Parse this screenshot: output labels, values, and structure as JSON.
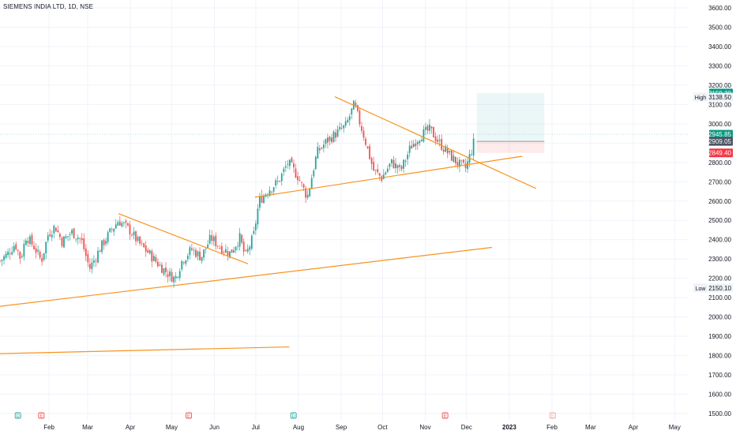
{
  "symbol_title": "SIEMENS INDIA LTD, 1D, NSE",
  "colors": {
    "up": "#26a69a",
    "down": "#ef5350",
    "trendline": "#f7931e",
    "price_badge": "#089981",
    "stop_badge": "#f23645",
    "neutral_badge": "#4b5563",
    "grid": "#f0f3fa",
    "axis_text": "#131722"
  },
  "chart_data": {
    "type": "candlestick",
    "title": "SIEMENS INDIA LTD, 1D, NSE",
    "ylim": [
      1500,
      3600
    ],
    "y_ticks": [
      "3600.00",
      "3500.00",
      "3400.00",
      "3300.00",
      "3200.00",
      "3100.00",
      "3000.00",
      "2900.00",
      "2800.00",
      "2700.00",
      "2600.00",
      "2500.00",
      "2400.00",
      "2300.00",
      "2200.00",
      "2100.00",
      "2000.00",
      "1900.00",
      "1800.00",
      "1700.00",
      "1600.00",
      "1500.00"
    ],
    "x_ticks": [
      "Feb",
      "Mar",
      "Apr",
      "May",
      "Jun",
      "Jul",
      "Aug",
      "Sep",
      "Oct",
      "Nov",
      "Dec",
      "2023",
      "Feb",
      "Mar",
      "Apr",
      "May"
    ],
    "price_labels": {
      "high_label": "High",
      "high_value": "3138.50",
      "low_label": "Low",
      "low_value": "2150.10",
      "target": "3159.30",
      "last_price": "2945.85",
      "entry": "2909.05",
      "stop": "2849.40"
    },
    "position": {
      "entry": 2909.05,
      "target": 3159.3,
      "stop": 2849.4
    },
    "horizontal_line": 2945.85,
    "trendlines": [
      {
        "from": [
          "2022-09-01",
          3140
        ],
        "to": [
          "2023-01-25",
          2665
        ]
      },
      {
        "from": [
          "2022-07-05",
          2620
        ],
        "to": [
          "2023-01-15",
          2832
        ]
      },
      {
        "from": [
          "2022-03-28",
          2535
        ],
        "to": [
          "2022-06-30",
          2275
        ]
      },
      {
        "from": [
          "2022-01-01",
          2055
        ],
        "to": [
          "2022-12-24",
          2360
        ]
      },
      {
        "from": [
          "2022-01-01",
          1810
        ],
        "to": [
          "2022-07-30",
          1845
        ]
      }
    ],
    "event_markers": [
      {
        "label": "D",
        "color": "#26a69a"
      },
      {
        "label": "E",
        "color": "#ef5350"
      },
      {
        "label": "E",
        "color": "#ef5350"
      },
      {
        "label": "D",
        "color": "#26a69a"
      },
      {
        "label": "E",
        "color": "#ef5350"
      },
      {
        "label": "E",
        "color": "#f5a3a3"
      }
    ],
    "price_path": [
      [
        "2022-01-01",
        2290
      ],
      [
        "2022-01-07",
        2330
      ],
      [
        "2022-01-12",
        2380
      ],
      [
        "2022-01-16",
        2300
      ],
      [
        "2022-01-20",
        2420
      ],
      [
        "2022-01-26",
        2360
      ],
      [
        "2022-01-31",
        2290
      ],
      [
        "2022-02-05",
        2430
      ],
      [
        "2022-02-10",
        2470
      ],
      [
        "2022-02-15",
        2390
      ],
      [
        "2022-02-22",
        2440
      ],
      [
        "2022-03-01",
        2400
      ],
      [
        "2022-03-07",
        2250
      ],
      [
        "2022-03-15",
        2360
      ],
      [
        "2022-03-22",
        2440
      ],
      [
        "2022-03-28",
        2500
      ],
      [
        "2022-04-05",
        2450
      ],
      [
        "2022-04-12",
        2380
      ],
      [
        "2022-04-19",
        2330
      ],
      [
        "2022-04-25",
        2280
      ],
      [
        "2022-05-02",
        2230
      ],
      [
        "2022-05-08",
        2195
      ],
      [
        "2022-05-13",
        2290
      ],
      [
        "2022-05-20",
        2350
      ],
      [
        "2022-05-27",
        2310
      ],
      [
        "2022-06-03",
        2410
      ],
      [
        "2022-06-10",
        2360
      ],
      [
        "2022-06-17",
        2330
      ],
      [
        "2022-06-24",
        2410
      ],
      [
        "2022-06-28",
        2310
      ],
      [
        "2022-07-04",
        2420
      ],
      [
        "2022-07-08",
        2600
      ],
      [
        "2022-07-15",
        2660
      ],
      [
        "2022-07-22",
        2700
      ],
      [
        "2022-07-29",
        2800
      ],
      [
        "2022-08-05",
        2730
      ],
      [
        "2022-08-12",
        2620
      ],
      [
        "2022-08-19",
        2850
      ],
      [
        "2022-08-26",
        2910
      ],
      [
        "2022-09-02",
        2950
      ],
      [
        "2022-09-09",
        2990
      ],
      [
        "2022-09-15",
        3100
      ],
      [
        "2022-09-22",
        2940
      ],
      [
        "2022-09-29",
        2760
      ],
      [
        "2022-10-05",
        2720
      ],
      [
        "2022-10-12",
        2800
      ],
      [
        "2022-10-19",
        2760
      ],
      [
        "2022-10-26",
        2880
      ],
      [
        "2022-11-02",
        2940
      ],
      [
        "2022-11-09",
        2970
      ],
      [
        "2022-11-16",
        2900
      ],
      [
        "2022-11-23",
        2840
      ],
      [
        "2022-11-30",
        2790
      ],
      [
        "2022-12-05",
        2770
      ],
      [
        "2022-12-10",
        2880
      ],
      [
        "2022-12-12",
        2945
      ]
    ]
  }
}
